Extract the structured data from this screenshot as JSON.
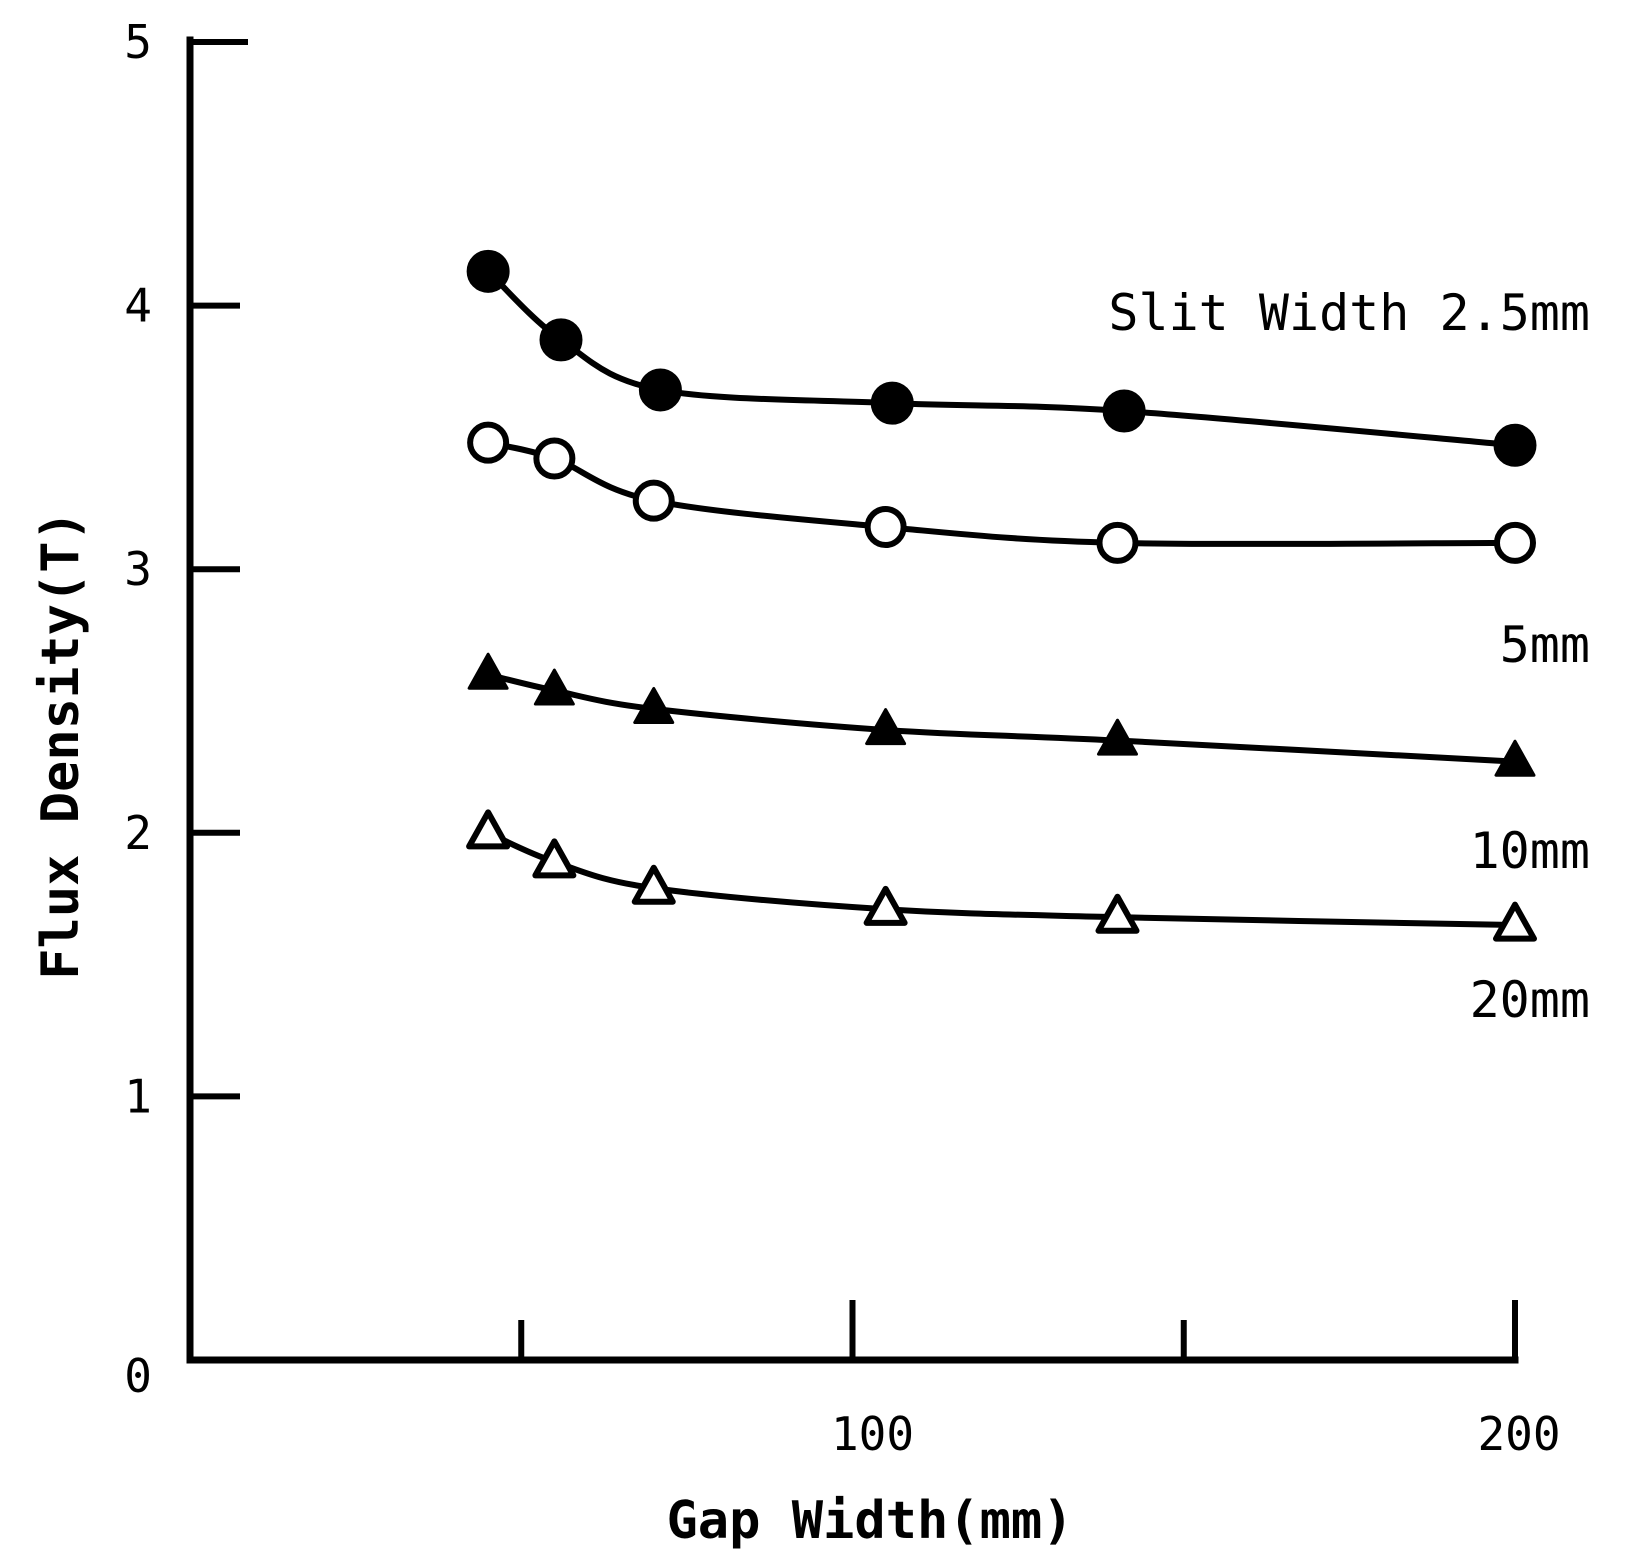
{
  "chart_data": {
    "type": "line",
    "title": "",
    "xlabel": "Gap Width(mm)",
    "ylabel": "Flux Density(T)",
    "xlim": [
      0,
      200
    ],
    "ylim": [
      0,
      5
    ],
    "x_ticks": [
      {
        "value": 0,
        "label": "0"
      },
      {
        "value": 50,
        "label": ""
      },
      {
        "value": 100,
        "label": "100"
      },
      {
        "value": 150,
        "label": ""
      },
      {
        "value": 200,
        "label": "200"
      }
    ],
    "y_ticks": [
      {
        "value": 1,
        "label": "1"
      },
      {
        "value": 2,
        "label": "2"
      },
      {
        "value": 3,
        "label": "3"
      },
      {
        "value": 4,
        "label": "4"
      },
      {
        "value": 5,
        "label": "5"
      }
    ],
    "grid": false,
    "series": [
      {
        "name": "Slit Width 2.5mm",
        "marker": "filled-circle",
        "x": [
          45,
          56,
          71,
          106,
          141,
          200
        ],
        "y": [
          4.13,
          3.87,
          3.68,
          3.63,
          3.6,
          3.47
        ]
      },
      {
        "name": "5mm",
        "marker": "open-circle",
        "x": [
          45,
          55,
          70,
          105,
          140,
          200
        ],
        "y": [
          3.48,
          3.42,
          3.26,
          3.16,
          3.1,
          3.1
        ]
      },
      {
        "name": "10mm",
        "marker": "filled-triangle",
        "x": [
          45,
          55,
          70,
          105,
          140,
          200
        ],
        "y": [
          2.6,
          2.54,
          2.47,
          2.39,
          2.35,
          2.27
        ]
      },
      {
        "name": "20mm",
        "marker": "open-triangle",
        "x": [
          45,
          55,
          70,
          105,
          140,
          200
        ],
        "y": [
          2.0,
          1.89,
          1.79,
          1.71,
          1.68,
          1.65
        ]
      }
    ]
  }
}
